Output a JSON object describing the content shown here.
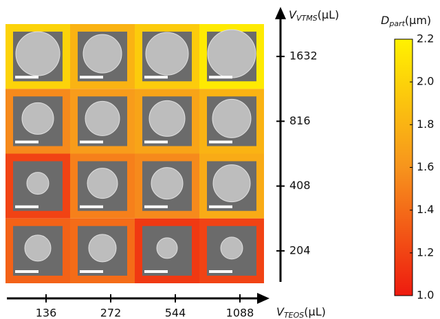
{
  "chart_data": {
    "type": "heatmap",
    "x_categories": [
      136,
      272,
      544,
      1088
    ],
    "y_categories": [
      1632,
      816,
      408,
      204
    ],
    "values": [
      [
        2.0,
        1.8,
        1.95,
        2.15
      ],
      [
        1.55,
        1.65,
        1.7,
        1.8
      ],
      [
        1.2,
        1.5,
        1.55,
        1.75
      ],
      [
        1.35,
        1.4,
        1.15,
        1.2
      ]
    ],
    "x_label": {
      "symbol": "V",
      "subscript": "TEOS",
      "unit": "(μL)"
    },
    "y_label": {
      "symbol": "V",
      "subscript": "VTMS",
      "unit": "(μL)"
    },
    "colorbar": {
      "title": {
        "symbol": "D",
        "subscript": "part",
        "unit": "(μm)"
      },
      "lim": [
        1.0,
        2.2
      ],
      "ticks": [
        {
          "value": 1.0,
          "label": "1.0"
        },
        {
          "value": 1.2,
          "label": "1.2"
        },
        {
          "value": 1.4,
          "label": "1.4"
        },
        {
          "value": 1.6,
          "label": "1.6"
        },
        {
          "value": 1.8,
          "label": "1.8"
        },
        {
          "value": 2.0,
          "label": "2.0"
        },
        {
          "value": 2.2,
          "label": "2.2"
        }
      ],
      "colors": [
        "#ee1b0f",
        "#f7941d",
        "#fff200"
      ]
    }
  }
}
